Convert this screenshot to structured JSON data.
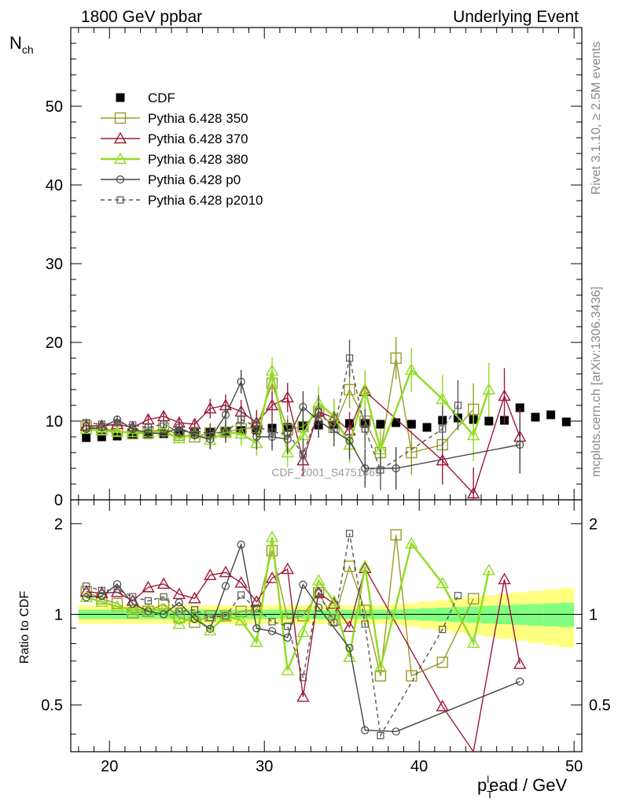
{
  "chart_data": [
    {
      "type": "scatter",
      "panel": "main",
      "title_left": "1800 GeV ppbar",
      "title_right": "Underlying Event",
      "ylabel": "N_ch",
      "xlabel": "",
      "xlim": [
        17.5,
        50.5
      ],
      "ylim": [
        0,
        60
      ],
      "y_ticks": [
        0,
        10,
        20,
        30,
        40,
        50
      ],
      "watermark": "CDF_2001_S4751469",
      "legend_position": "top-left",
      "series": [
        {
          "name": "CDF",
          "color": "#000000",
          "marker": "filled-square",
          "line": "none",
          "points": [
            [
              18.5,
              7.9
            ],
            [
              19.5,
              8.0
            ],
            [
              20.5,
              8.1
            ],
            [
              21.5,
              8.3
            ],
            [
              22.5,
              8.3
            ],
            [
              23.5,
              8.4
            ],
            [
              24.5,
              8.4
            ],
            [
              25.5,
              8.5
            ],
            [
              26.5,
              8.6
            ],
            [
              27.5,
              8.7
            ],
            [
              28.5,
              8.8
            ],
            [
              29.5,
              8.9
            ],
            [
              30.5,
              9.1
            ],
            [
              31.5,
              9.2
            ],
            [
              32.5,
              9.4
            ],
            [
              33.5,
              9.5
            ],
            [
              34.5,
              9.6
            ],
            [
              35.5,
              9.7
            ],
            [
              36.5,
              9.7
            ],
            [
              37.5,
              9.6
            ],
            [
              38.5,
              9.8
            ],
            [
              39.5,
              9.6
            ],
            [
              40.5,
              9.2
            ],
            [
              41.5,
              10.1
            ],
            [
              42.5,
              10.4
            ],
            [
              43.5,
              10.2
            ],
            [
              44.5,
              10.0
            ],
            [
              45.5,
              10.1
            ],
            [
              46.5,
              11.7
            ],
            [
              47.5,
              10.5
            ],
            [
              48.5,
              10.8
            ],
            [
              49.5,
              9.9
            ]
          ]
        },
        {
          "name": "Pythia 6.428 350",
          "color": "#9a9a2a",
          "marker": "open-square",
          "line": "solid",
          "points": [
            [
              18.5,
              9.4
            ],
            [
              19.5,
              9.0
            ],
            [
              20.5,
              8.8
            ],
            [
              21.5,
              8.4
            ],
            [
              22.5,
              8.5
            ],
            [
              23.5,
              9.1
            ],
            [
              24.5,
              8.2
            ],
            [
              25.5,
              8.0
            ],
            [
              26.5,
              8.5
            ],
            [
              27.5,
              8.6
            ],
            [
              28.5,
              9.0
            ],
            [
              29.5,
              9.2
            ],
            [
              30.5,
              14.8
            ],
            [
              31.5,
              8.9
            ],
            [
              32.5,
              9.3
            ],
            [
              33.5,
              11.2
            ],
            [
              34.5,
              9.2
            ],
            [
              35.5,
              14.0
            ],
            [
              36.5,
              10.0
            ],
            [
              37.5,
              6.0
            ],
            [
              38.5,
              18.0
            ],
            [
              39.5,
              6.0
            ],
            [
              41.5,
              7.0
            ],
            [
              43.5,
              11.5
            ]
          ]
        },
        {
          "name": "Pythia 6.428 370",
          "color": "#a01838",
          "marker": "open-triangle",
          "line": "solid",
          "points": [
            [
              18.5,
              9.4
            ],
            [
              19.5,
              9.4
            ],
            [
              20.5,
              9.6
            ],
            [
              21.5,
              9.2
            ],
            [
              22.5,
              10.2
            ],
            [
              23.5,
              10.6
            ],
            [
              24.5,
              9.8
            ],
            [
              25.5,
              9.6
            ],
            [
              26.5,
              11.6
            ],
            [
              27.5,
              12.0
            ],
            [
              28.5,
              11.2
            ],
            [
              29.5,
              9.8
            ],
            [
              30.5,
              12.0
            ],
            [
              31.5,
              13.0
            ],
            [
              32.5,
              5.0
            ],
            [
              33.5,
              11.2
            ],
            [
              34.5,
              10.4
            ],
            [
              35.5,
              8.8
            ],
            [
              36.5,
              13.8
            ],
            [
              41.5,
              5.0
            ],
            [
              43.5,
              0.8
            ],
            [
              45.5,
              13.2
            ],
            [
              46.5,
              8.0
            ]
          ]
        },
        {
          "name": "Pythia 6.428 380",
          "color": "#8fdc20",
          "marker": "open-triangle",
          "line": "solid",
          "points": [
            [
              18.5,
              9.0
            ],
            [
              19.5,
              8.8
            ],
            [
              20.5,
              8.6
            ],
            [
              21.5,
              8.6
            ],
            [
              22.5,
              8.6
            ],
            [
              23.5,
              8.7
            ],
            [
              24.5,
              7.8
            ],
            [
              25.5,
              8.4
            ],
            [
              26.5,
              7.6
            ],
            [
              27.5,
              8.6
            ],
            [
              28.5,
              8.4
            ],
            [
              29.5,
              7.2
            ],
            [
              30.5,
              16.4
            ],
            [
              31.5,
              6.0
            ],
            [
              32.5,
              8.2
            ],
            [
              33.5,
              12.3
            ],
            [
              34.5,
              10.6
            ],
            [
              35.5,
              7.0
            ],
            [
              36.5,
              14.0
            ],
            [
              37.5,
              6.4
            ],
            [
              39.5,
              16.5
            ],
            [
              41.5,
              12.8
            ],
            [
              43.5,
              8.2
            ],
            [
              44.5,
              14.0
            ]
          ]
        },
        {
          "name": "Pythia 6.428 p0",
          "color": "#444444",
          "marker": "open-circle",
          "line": "solid",
          "points": [
            [
              18.5,
              9.0
            ],
            [
              19.5,
              9.2
            ],
            [
              20.5,
              10.2
            ],
            [
              21.5,
              9.0
            ],
            [
              22.5,
              8.5
            ],
            [
              23.5,
              8.4
            ],
            [
              24.5,
              9.2
            ],
            [
              25.5,
              8.2
            ],
            [
              26.5,
              7.7
            ],
            [
              27.5,
              10.8
            ],
            [
              28.5,
              15.0
            ],
            [
              29.5,
              8.0
            ],
            [
              30.5,
              8.0
            ],
            [
              31.5,
              7.7
            ],
            [
              32.5,
              11.8
            ],
            [
              33.5,
              10.0
            ],
            [
              35.5,
              7.5
            ],
            [
              36.5,
              4.0
            ],
            [
              38.5,
              4.0
            ],
            [
              46.5,
              7.0
            ]
          ]
        },
        {
          "name": "Pythia 6.428 p2010",
          "color": "#555555",
          "marker": "open-square-small",
          "line": "dashed",
          "points": [
            [
              18.5,
              9.8
            ],
            [
              19.5,
              9.6
            ],
            [
              20.5,
              9.8
            ],
            [
              21.5,
              9.5
            ],
            [
              22.5,
              9.2
            ],
            [
              23.5,
              9.6
            ],
            [
              24.5,
              8.6
            ],
            [
              25.5,
              8.8
            ],
            [
              26.5,
              8.4
            ],
            [
              27.5,
              8.6
            ],
            [
              28.5,
              10.2
            ],
            [
              29.5,
              9.3
            ],
            [
              30.5,
              8.6
            ],
            [
              31.5,
              8.4
            ],
            [
              32.5,
              5.8
            ],
            [
              33.5,
              11.2
            ],
            [
              34.5,
              9.0
            ],
            [
              35.5,
              18.0
            ],
            [
              36.5,
              9.0
            ],
            [
              37.5,
              3.8
            ],
            [
              41.5,
              9.0
            ],
            [
              42.5,
              12.0
            ]
          ]
        }
      ]
    },
    {
      "type": "line",
      "panel": "ratio",
      "ylabel": "Ratio to CDF",
      "xlabel": "p_T^lead / GeV",
      "xlim": [
        17.5,
        50.5
      ],
      "ylim": [
        0.35,
        2.4
      ],
      "y_scale": "log",
      "y_ticks": [
        0.5,
        1,
        2
      ],
      "x_ticks": [
        20,
        30,
        40,
        50
      ],
      "reference_line": 1.0,
      "band_1sigma_color": "#80ff80",
      "band_2sigma_color": "#ffff80"
    }
  ],
  "side_labels": {
    "top": "Rivet 3.1.10, ≥ 2.5M events",
    "bottom": "mcplots.cern.ch [arXiv:1306.3436]"
  },
  "axis_text": {
    "ylabel_main": "N",
    "ylabel_main_sub": "ch",
    "xlabel_p": "p",
    "xlabel_sub": "T",
    "xlabel_sup": "l",
    "xlabel_rest": "ead / GeV",
    "ylabel_ratio": "Ratio to CDF"
  }
}
